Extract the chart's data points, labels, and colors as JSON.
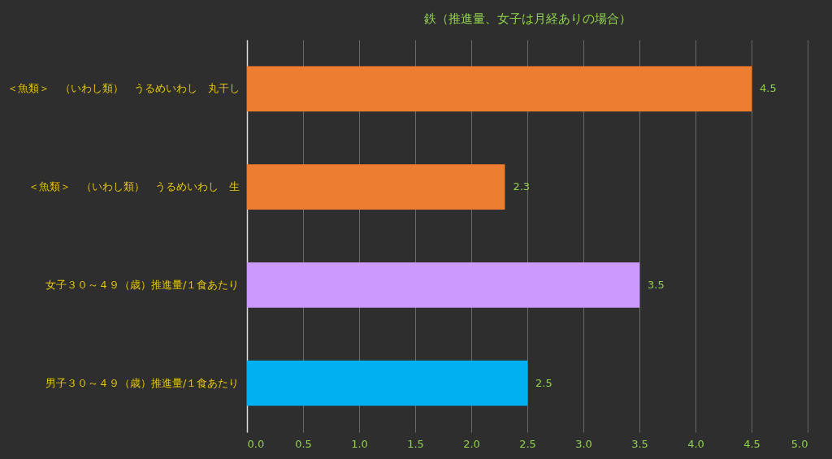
{
  "chart_data": {
    "type": "bar",
    "orientation": "horizontal",
    "title": "鉄（推進量、女子は月経ありの場合）",
    "categories": [
      "＜魚類＞　（いわし類）　うるめいわし　丸干し",
      "＜魚類＞　（いわし類）　うるめいわし　生",
      "女子３０～４９（歳）推進量/１食あたり",
      "男子３０～４９（歳）推進量/１食あたり"
    ],
    "values": [
      4.5,
      2.3,
      3.5,
      2.5
    ],
    "colors": [
      "#ed7d31",
      "#ed7d31",
      "#cc99ff",
      "#00b0f0"
    ],
    "xlim": [
      0,
      5
    ],
    "xticks": [
      {
        "value": 0,
        "label": "0.0"
      },
      {
        "value": 0.5,
        "label": "0.5"
      },
      {
        "value": 1,
        "label": "1.0"
      },
      {
        "value": 1.5,
        "label": "1.5"
      },
      {
        "value": 2,
        "label": "2.0"
      },
      {
        "value": 2.5,
        "label": "2.5"
      },
      {
        "value": 3,
        "label": "3.0"
      },
      {
        "value": 3.5,
        "label": "3.5"
      },
      {
        "value": 4,
        "label": "4.0"
      },
      {
        "value": 4.5,
        "label": "4.5"
      },
      {
        "value": 5,
        "label": "5.0"
      }
    ],
    "grid": "x",
    "data_labels": true
  }
}
